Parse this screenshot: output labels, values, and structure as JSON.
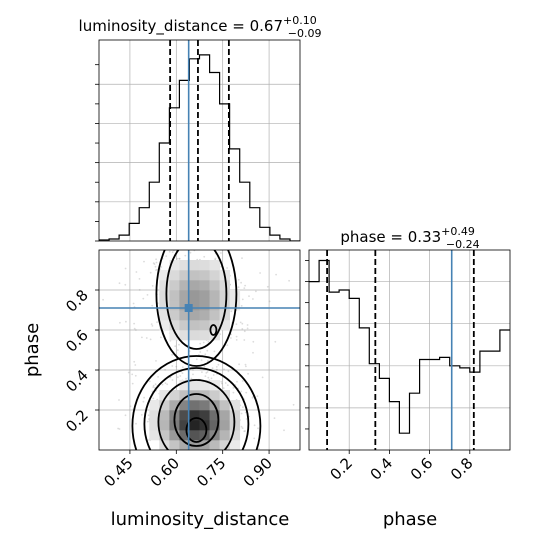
{
  "chart_data": {
    "type": "corner",
    "truth_color": "#4682b4",
    "grid": true,
    "parameters": [
      {
        "name": "luminosity_distance",
        "median": "0.67",
        "plus": "+0.10",
        "minus": "−0.09",
        "range": [
          0.35,
          1.0
        ],
        "ticks": [
          "0.45",
          "0.60",
          "0.75",
          "0.90"
        ],
        "tick_values": [
          0.45,
          0.6,
          0.75,
          0.9
        ],
        "quantiles": [
          0.58,
          0.67,
          0.77
        ],
        "truth": 0.64
      },
      {
        "name": "phase",
        "median": "0.33",
        "plus": "+0.49",
        "minus": "−0.24",
        "range": [
          0.0,
          1.0
        ],
        "ticks": [
          "0.2",
          "0.4",
          "0.6",
          "0.8"
        ],
        "tick_values": [
          0.2,
          0.4,
          0.6,
          0.8
        ],
        "quantiles": [
          0.09,
          0.33,
          0.82
        ],
        "truth": 0.71
      }
    ],
    "hist_luminosity_distance": {
      "edges": [
        0.35,
        0.3825,
        0.415,
        0.4475,
        0.48,
        0.5125,
        0.545,
        0.5775,
        0.61,
        0.6425,
        0.675,
        0.7075,
        0.74,
        0.7725,
        0.805,
        0.8375,
        0.87,
        0.9025,
        0.935,
        0.9675,
        1.0
      ],
      "counts": [
        0.5,
        1,
        3,
        9,
        17,
        30,
        50,
        68,
        82,
        93,
        95,
        86,
        70,
        47,
        30,
        17,
        7,
        3,
        1,
        0
      ]
    },
    "hist_phase": {
      "edges": [
        0.0,
        0.05,
        0.1,
        0.15,
        0.2,
        0.25,
        0.3,
        0.35,
        0.4,
        0.45,
        0.5,
        0.55,
        0.6,
        0.65,
        0.7,
        0.75,
        0.8,
        0.85,
        0.9,
        0.95,
        1.0
      ],
      "counts": [
        0.8,
        0.9,
        0.75,
        0.76,
        0.72,
        0.58,
        0.41,
        0.34,
        0.23,
        0.08,
        0.27,
        0.43,
        0.43,
        0.44,
        0.4,
        0.39,
        0.37,
        0.47,
        0.47,
        0.57
      ]
    }
  }
}
